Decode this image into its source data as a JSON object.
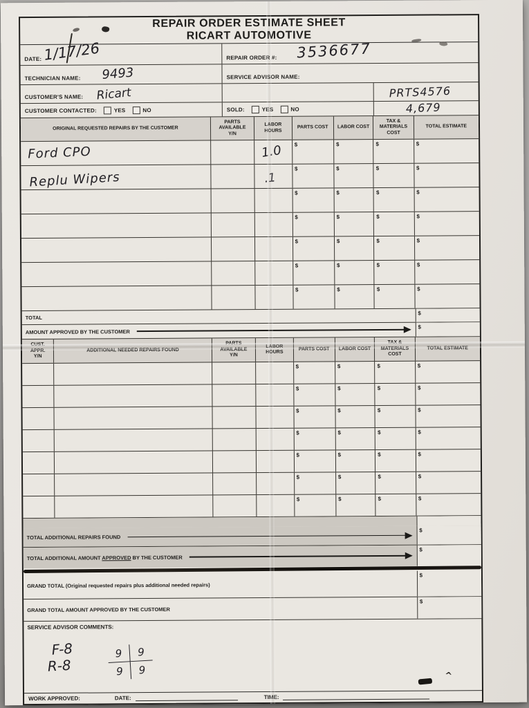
{
  "title": {
    "line1": "REPAIR ORDER ESTIMATE SHEET",
    "line2": "RICART AUTOMOTIVE"
  },
  "header": {
    "date_label": "DATE:",
    "date_value": "1/17/26",
    "repair_order_label": "REPAIR ORDER #:",
    "repair_order_value": "3536677",
    "technician_label": "TECHNICIAN NAME:",
    "technician_value": "9493",
    "service_advisor_label": "SERVICE ADVISOR NAME:",
    "customer_label": "CUSTOMER'S NAME:",
    "customer_value": "Ricart",
    "customer_contacted_label": "CUSTOMER CONTACTED:",
    "sold_label": "SOLD:",
    "yes_label": "YES",
    "no_label": "NO",
    "handwritten_note_line1": "PRTS4576",
    "handwritten_note_line2": "4,679"
  },
  "currency": "$",
  "original_table": {
    "col_headers": [
      "ORIGINAL REQUESTED REPAIRS BY THE CUSTOMER",
      "PARTS\nAVAILABLE\nY/N",
      "LABOR\nHOURS",
      "PARTS COST",
      "LABOR COST",
      "TAX &\nMATERIALS\nCOST",
      "TOTAL ESTIMATE"
    ],
    "rows": [
      {
        "description": "Ford CPO",
        "labor_hours": "1.0"
      },
      {
        "description": "Replu Wipers",
        "labor_hours": ".1"
      },
      {},
      {},
      {},
      {},
      {}
    ],
    "total_label": "TOTAL",
    "amount_approved_label": "AMOUNT APPROVED BY THE CUSTOMER"
  },
  "additional_table": {
    "col_headers": [
      "CUST.\nAPPR.\nY/N",
      "ADDITIONAL NEEDED REPAIRS FOUND",
      "PARTS\nAVAILABLE\nY/N",
      "LABOR\nHOURS",
      "PARTS COST",
      "LABOR COST",
      "TAX &\nMATERIALS\nCOST",
      "TOTAL ESTIMATE"
    ],
    "row_count": 7,
    "total_additional_label": "TOTAL ADDITIONAL REPAIRS FOUND",
    "approved_label_pre": "TOTAL ADDITIONAL AMOUNT ",
    "approved_label_underlined": "APPROVED",
    "approved_label_post": " BY THE CUSTOMER"
  },
  "grand": {
    "grand_total_label": "GRAND TOTAL (Original requested repairs plus additional needed repairs)",
    "grand_total_approved_label": "GRAND TOTAL AMOUNT APPROVED BY THE CUSTOMER"
  },
  "comments": {
    "label": "SERVICE ADVISOR COMMENTS:",
    "handwritten_left_line1": "F-8",
    "handwritten_left_line2": "R-8",
    "tread_grid": [
      "9",
      "9",
      "9",
      "9"
    ]
  },
  "footer": {
    "work_approved_label": "WORK APPROVED:",
    "date_label": "DATE:",
    "time_label": "TIME:"
  }
}
